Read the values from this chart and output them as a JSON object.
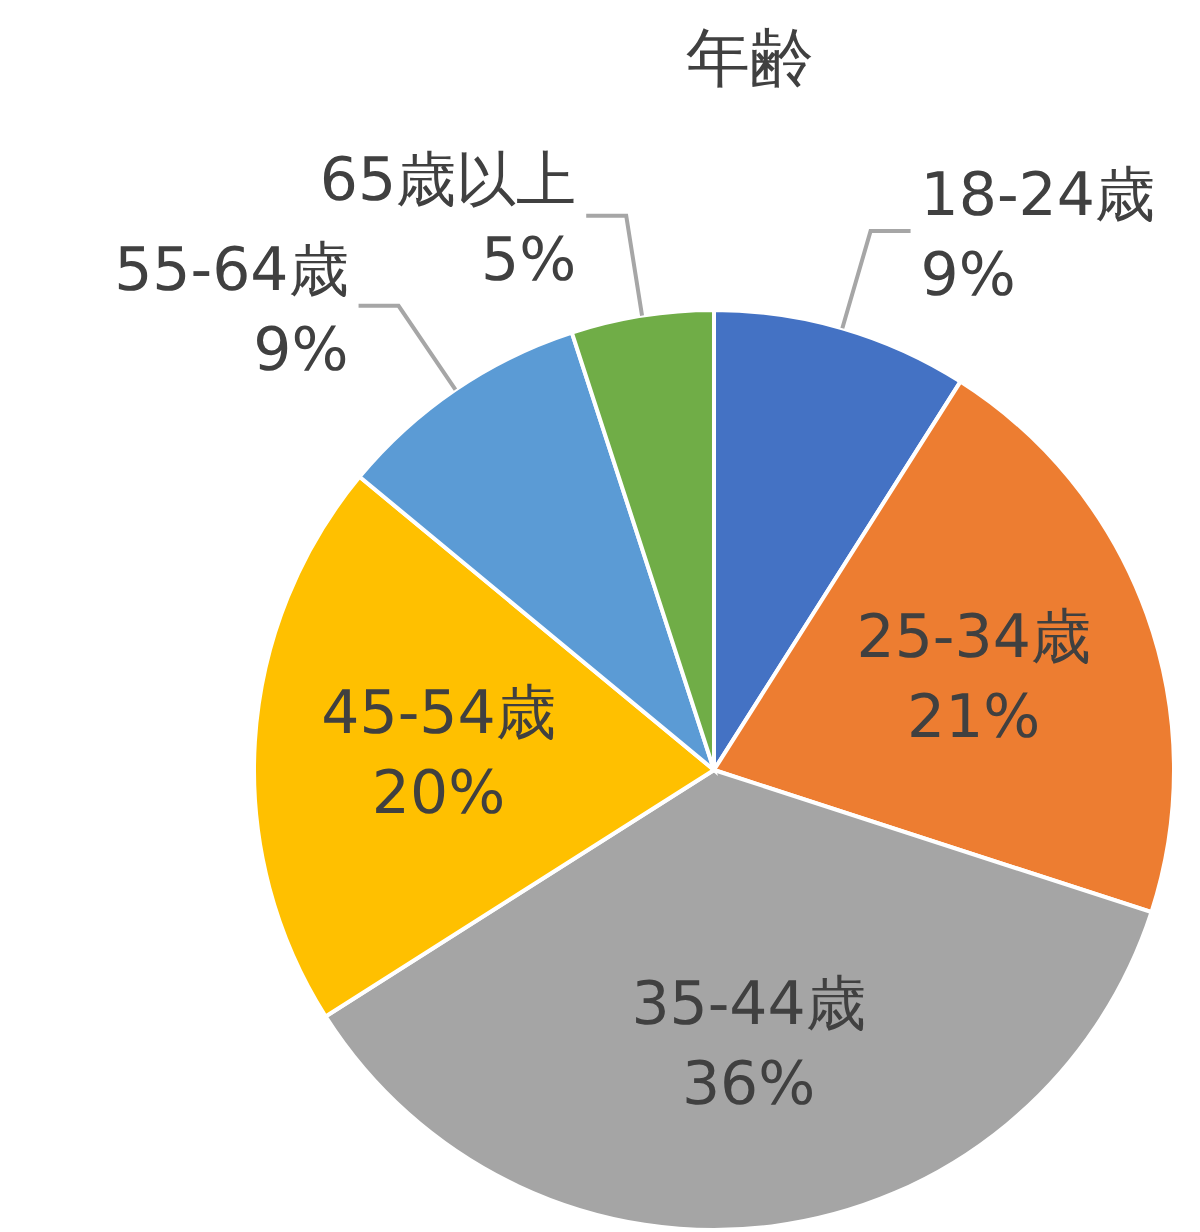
{
  "chart_data": {
    "type": "pie",
    "title": "年齢",
    "categories": [
      "18-24歳",
      "25-34歳",
      "35-44歳",
      "45-54歳",
      "55-64歳",
      "65歳以上"
    ],
    "values": [
      9,
      21,
      36,
      20,
      9,
      5
    ],
    "colors": [
      "#4472c4",
      "#ed7d31",
      "#a5a5a5",
      "#ffc000",
      "#5b9bd5",
      "#70ad47"
    ],
    "value_labels": [
      "9%",
      "21%",
      "36%",
      "20%",
      "9%",
      "5%"
    ]
  }
}
